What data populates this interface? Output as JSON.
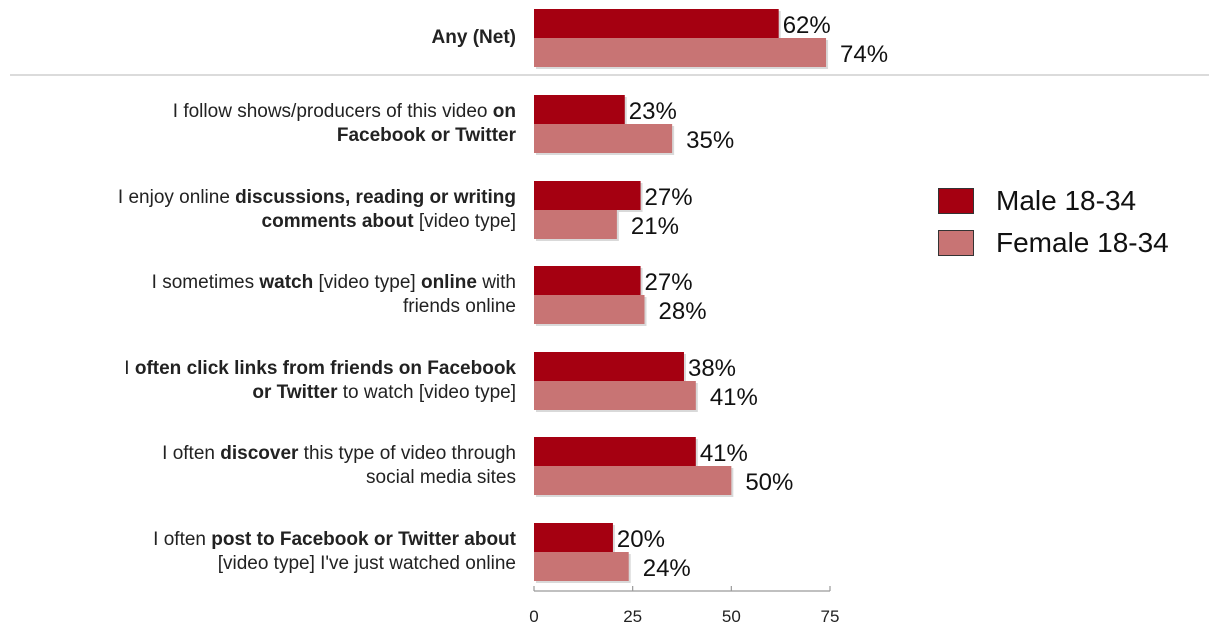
{
  "chart_data": {
    "type": "bar",
    "orientation": "horizontal",
    "categories": [
      [
        {
          "t": "Any (Net)",
          "b": true
        }
      ],
      [
        {
          "t": "I follow shows/producers of this video ",
          "b": false
        },
        {
          "t": "on",
          "b": true
        },
        {
          "t": "\n",
          "b": false
        },
        {
          "t": "Facebook or Twitter",
          "b": true
        }
      ],
      [
        {
          "t": "I enjoy online ",
          "b": false
        },
        {
          "t": "discussions, reading or writing",
          "b": true
        },
        {
          "t": "\n",
          "b": false
        },
        {
          "t": "comments about",
          "b": true
        },
        {
          "t": " [video type]",
          "b": false
        }
      ],
      [
        {
          "t": "I sometimes ",
          "b": false
        },
        {
          "t": "watch",
          "b": true
        },
        {
          "t": " [video type] ",
          "b": false
        },
        {
          "t": "online",
          "b": true
        },
        {
          "t": " with",
          "b": false
        },
        {
          "t": "\n",
          "b": false
        },
        {
          "t": "friends online",
          "b": false
        }
      ],
      [
        {
          "t": "I ",
          "b": false
        },
        {
          "t": "often click links from friends on Facebook",
          "b": true
        },
        {
          "t": "\n",
          "b": false
        },
        {
          "t": "or Twitter",
          "b": true
        },
        {
          "t": " to watch [video type]",
          "b": false
        }
      ],
      [
        {
          "t": "I often ",
          "b": false
        },
        {
          "t": "discover",
          "b": true
        },
        {
          "t": " this type of video through",
          "b": false
        },
        {
          "t": "\n",
          "b": false
        },
        {
          "t": "social media sites",
          "b": false
        }
      ],
      [
        {
          "t": "I often ",
          "b": false
        },
        {
          "t": "post to Facebook or Twitter about",
          "b": true
        },
        {
          "t": "\n",
          "b": false
        },
        {
          "t": "[video type] I've just watched online",
          "b": false
        }
      ]
    ],
    "series": [
      {
        "name": "Male 18-34",
        "color": "#a50011",
        "values": [
          62,
          23,
          27,
          27,
          38,
          41,
          20
        ]
      },
      {
        "name": "Female 18-34",
        "color": "#c87474",
        "values": [
          74,
          35,
          21,
          28,
          41,
          50,
          24
        ]
      }
    ],
    "value_suffix": "%",
    "xlim": [
      0,
      75
    ],
    "xticks": [
      0,
      25,
      50,
      75
    ],
    "legend_position": "right",
    "grid": false,
    "title": "",
    "xlabel": "",
    "ylabel": ""
  }
}
